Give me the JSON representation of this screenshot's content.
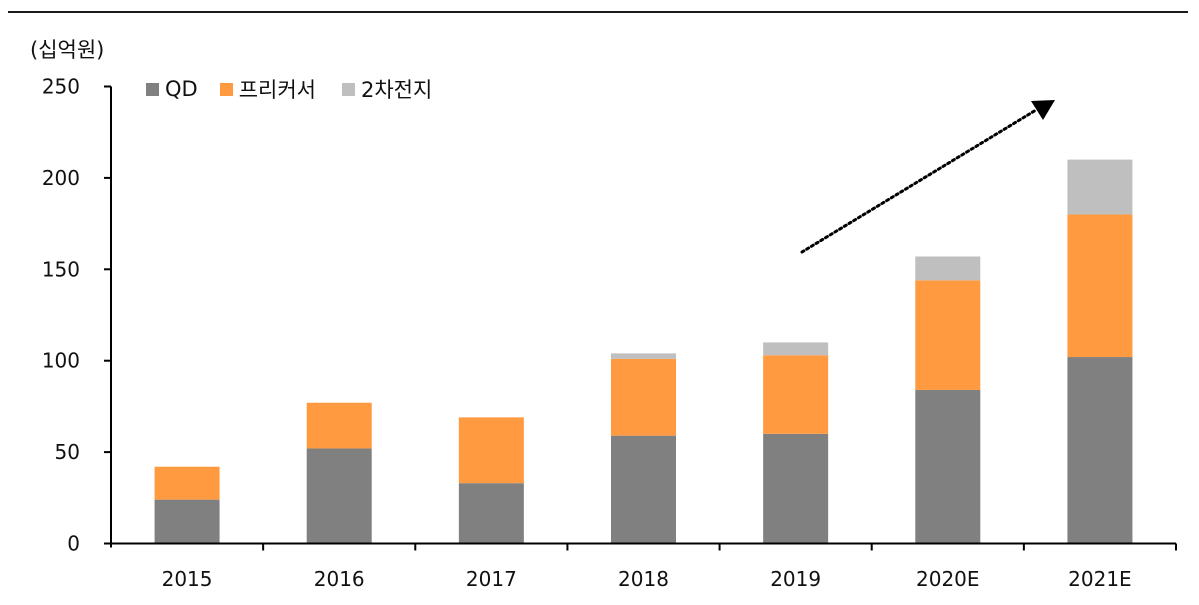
{
  "chart_data": {
    "type": "bar",
    "stacked": true,
    "title": "",
    "ylabel": "(십억원)",
    "xlabel": "",
    "ylim": [
      0,
      250
    ],
    "yticks": [
      0,
      50,
      100,
      150,
      200,
      250
    ],
    "grid": false,
    "legend_position": "top-left",
    "categories": [
      "2015",
      "2016",
      "2017",
      "2018",
      "2019",
      "2020E",
      "2021E"
    ],
    "series": [
      {
        "name": "QD",
        "color": "#808080",
        "values": [
          24,
          52,
          33,
          59,
          60,
          84,
          102
        ]
      },
      {
        "name": "프리커서",
        "color": "#FF9A40",
        "values": [
          18,
          25,
          36,
          42,
          43,
          60,
          78
        ]
      },
      {
        "name": "2차전지",
        "color": "#BFBFBF",
        "values": [
          0,
          0,
          0,
          3,
          7,
          13,
          30
        ]
      }
    ],
    "totals": [
      42,
      77,
      69,
      104,
      110,
      157,
      210
    ],
    "annotations": [
      {
        "type": "dotted-arrow",
        "description": "upward trend arrow from 2019 toward 2021E"
      }
    ]
  },
  "unit_label": "(십억원)",
  "legend": [
    {
      "label": "QD",
      "color": "#808080"
    },
    {
      "label": "프리커서",
      "color": "#FF9A40"
    },
    {
      "label": "2차전지",
      "color": "#BFBFBF"
    }
  ]
}
